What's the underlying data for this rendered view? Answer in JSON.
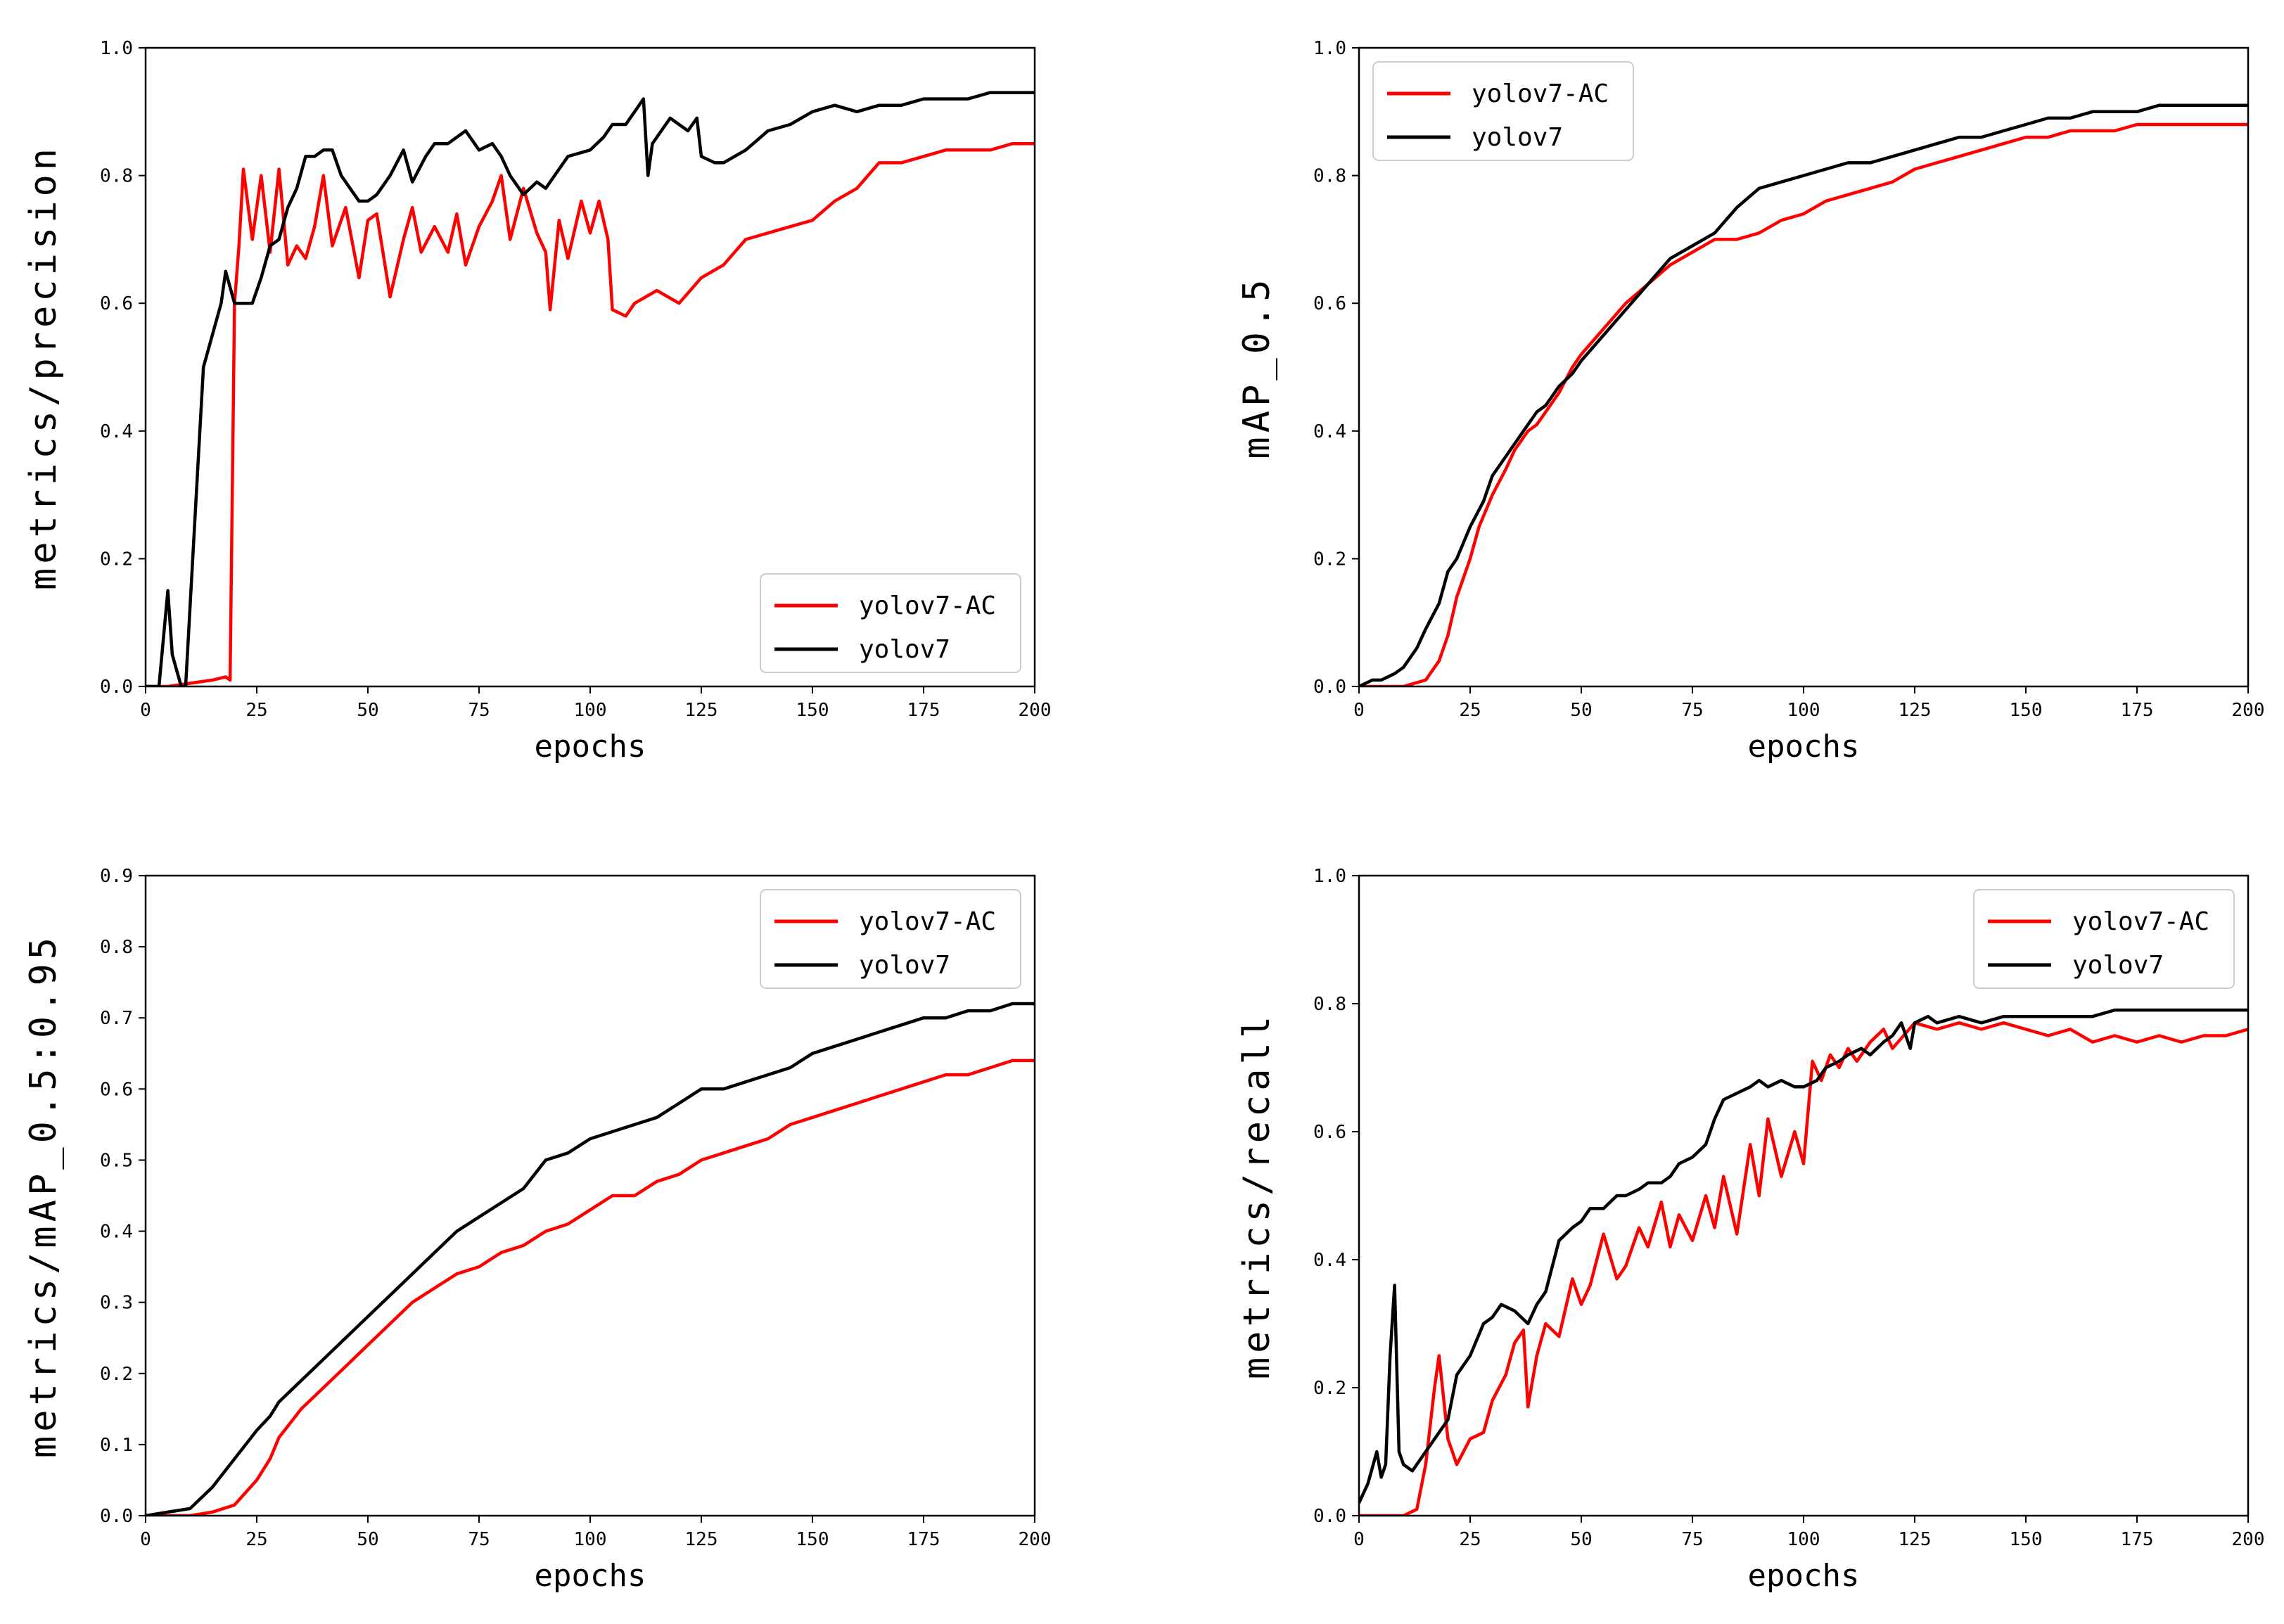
{
  "colors": {
    "yolov7_ac": "#ff0000",
    "yolov7": "#000000",
    "axis": "#000000"
  },
  "chart_data": [
    {
      "type": "line",
      "panel": "top-left",
      "xlabel": "epochs",
      "ylabel": "metrics/precision",
      "xlim": [
        0,
        200
      ],
      "ylim": [
        0,
        1.0
      ],
      "xticks": [
        "0",
        "25",
        "50",
        "75",
        "100",
        "125",
        "150",
        "175",
        "200"
      ],
      "yticks": [
        "0.0",
        "0.2",
        "0.4",
        "0.6",
        "0.8",
        "1.0"
      ],
      "legend": "lower-right",
      "series": [
        {
          "name": "yolov7-AC",
          "color": "#ff0000",
          "x": [
            0,
            5,
            10,
            15,
            18,
            19,
            20,
            21,
            22,
            24,
            26,
            28,
            30,
            32,
            34,
            36,
            38,
            40,
            42,
            45,
            48,
            50,
            52,
            55,
            58,
            60,
            62,
            65,
            68,
            70,
            72,
            75,
            78,
            80,
            82,
            85,
            88,
            90,
            91,
            93,
            95,
            98,
            100,
            102,
            104,
            105,
            108,
            110,
            115,
            120,
            125,
            130,
            135,
            140,
            145,
            150,
            155,
            160,
            165,
            170,
            175,
            180,
            185,
            190,
            195,
            198,
            200
          ],
          "y": [
            0,
            0,
            0.005,
            0.01,
            0.015,
            0.01,
            0.6,
            0.69,
            0.81,
            0.7,
            0.8,
            0.68,
            0.81,
            0.66,
            0.69,
            0.67,
            0.72,
            0.8,
            0.69,
            0.75,
            0.64,
            0.73,
            0.74,
            0.61,
            0.7,
            0.75,
            0.68,
            0.72,
            0.68,
            0.74,
            0.66,
            0.72,
            0.76,
            0.8,
            0.7,
            0.78,
            0.71,
            0.68,
            0.59,
            0.73,
            0.67,
            0.76,
            0.71,
            0.76,
            0.7,
            0.59,
            0.58,
            0.6,
            0.62,
            0.6,
            0.64,
            0.66,
            0.7,
            0.71,
            0.72,
            0.73,
            0.76,
            0.78,
            0.82,
            0.82,
            0.83,
            0.84,
            0.84,
            0.84,
            0.85,
            0.85,
            0.85
          ]
        },
        {
          "name": "yolov7",
          "color": "#000000",
          "x": [
            0,
            3,
            5,
            6,
            8,
            9,
            11,
            13,
            15,
            17,
            18,
            20,
            22,
            24,
            26,
            28,
            30,
            32,
            34,
            36,
            38,
            40,
            42,
            44,
            46,
            48,
            50,
            52,
            55,
            58,
            60,
            63,
            65,
            68,
            70,
            72,
            75,
            78,
            80,
            82,
            85,
            88,
            90,
            92,
            95,
            100,
            103,
            105,
            108,
            110,
            112,
            113,
            114,
            116,
            118,
            120,
            122,
            124,
            125,
            128,
            130,
            135,
            140,
            145,
            150,
            155,
            160,
            165,
            170,
            175,
            180,
            185,
            190,
            195,
            200
          ],
          "y": [
            0,
            0,
            0.15,
            0.05,
            0,
            0,
            0.25,
            0.5,
            0.55,
            0.6,
            0.65,
            0.6,
            0.6,
            0.6,
            0.64,
            0.69,
            0.7,
            0.75,
            0.78,
            0.83,
            0.83,
            0.84,
            0.84,
            0.8,
            0.78,
            0.76,
            0.76,
            0.77,
            0.8,
            0.84,
            0.79,
            0.83,
            0.85,
            0.85,
            0.86,
            0.87,
            0.84,
            0.85,
            0.83,
            0.8,
            0.77,
            0.79,
            0.78,
            0.8,
            0.83,
            0.84,
            0.86,
            0.88,
            0.88,
            0.9,
            0.92,
            0.8,
            0.85,
            0.87,
            0.89,
            0.88,
            0.87,
            0.89,
            0.83,
            0.82,
            0.82,
            0.84,
            0.87,
            0.88,
            0.9,
            0.91,
            0.9,
            0.91,
            0.91,
            0.92,
            0.92,
            0.92,
            0.93,
            0.93,
            0.93
          ]
        }
      ]
    },
    {
      "type": "line",
      "panel": "top-right",
      "xlabel": "epochs",
      "ylabel": "mAP_0.5",
      "xlim": [
        0,
        200
      ],
      "ylim": [
        0,
        1.0
      ],
      "xticks": [
        "0",
        "25",
        "50",
        "75",
        "100",
        "125",
        "150",
        "175",
        "200"
      ],
      "yticks": [
        "0.0",
        "0.2",
        "0.4",
        "0.6",
        "0.8",
        "1.0"
      ],
      "legend": "upper-left",
      "series": [
        {
          "name": "yolov7-AC",
          "color": "#ff0000",
          "x": [
            0,
            5,
            10,
            15,
            18,
            20,
            22,
            25,
            27,
            30,
            33,
            35,
            38,
            40,
            42,
            45,
            48,
            50,
            55,
            60,
            65,
            70,
            75,
            80,
            85,
            90,
            95,
            100,
            105,
            110,
            115,
            120,
            125,
            130,
            135,
            140,
            145,
            150,
            155,
            160,
            165,
            170,
            175,
            180,
            185,
            190,
            195,
            200
          ],
          "y": [
            0,
            0,
            0,
            0.01,
            0.04,
            0.08,
            0.14,
            0.2,
            0.25,
            0.3,
            0.34,
            0.37,
            0.4,
            0.41,
            0.43,
            0.46,
            0.5,
            0.52,
            0.56,
            0.6,
            0.63,
            0.66,
            0.68,
            0.7,
            0.7,
            0.71,
            0.73,
            0.74,
            0.76,
            0.77,
            0.78,
            0.79,
            0.81,
            0.82,
            0.83,
            0.84,
            0.85,
            0.86,
            0.86,
            0.87,
            0.87,
            0.87,
            0.88,
            0.88,
            0.88,
            0.88,
            0.88,
            0.88
          ]
        },
        {
          "name": "yolov7",
          "color": "#000000",
          "x": [
            0,
            3,
            5,
            8,
            10,
            13,
            15,
            18,
            20,
            22,
            25,
            28,
            30,
            33,
            35,
            38,
            40,
            42,
            45,
            48,
            50,
            55,
            60,
            65,
            70,
            75,
            80,
            85,
            90,
            95,
            100,
            105,
            110,
            115,
            120,
            125,
            130,
            135,
            140,
            145,
            150,
            155,
            160,
            165,
            170,
            175,
            180,
            185,
            190,
            195,
            200
          ],
          "y": [
            0,
            0.01,
            0.01,
            0.02,
            0.03,
            0.06,
            0.09,
            0.13,
            0.18,
            0.2,
            0.25,
            0.29,
            0.33,
            0.36,
            0.38,
            0.41,
            0.43,
            0.44,
            0.47,
            0.49,
            0.51,
            0.55,
            0.59,
            0.63,
            0.67,
            0.69,
            0.71,
            0.75,
            0.78,
            0.79,
            0.8,
            0.81,
            0.82,
            0.82,
            0.83,
            0.84,
            0.85,
            0.86,
            0.86,
            0.87,
            0.88,
            0.89,
            0.89,
            0.9,
            0.9,
            0.9,
            0.91,
            0.91,
            0.91,
            0.91,
            0.91
          ]
        }
      ]
    },
    {
      "type": "line",
      "panel": "bottom-left",
      "xlabel": "epochs",
      "ylabel": "metrics/mAP_0.5:0.95",
      "xlim": [
        0,
        200
      ],
      "ylim": [
        0,
        0.9
      ],
      "xticks": [
        "0",
        "25",
        "50",
        "75",
        "100",
        "125",
        "150",
        "175",
        "200"
      ],
      "yticks": [
        "0.0",
        "0.1",
        "0.2",
        "0.3",
        "0.4",
        "0.5",
        "0.6",
        "0.7",
        "0.8",
        "0.9"
      ],
      "legend": "upper-right",
      "series": [
        {
          "name": "yolov7-AC",
          "color": "#ff0000",
          "x": [
            0,
            5,
            10,
            15,
            20,
            25,
            28,
            30,
            35,
            40,
            45,
            50,
            55,
            60,
            65,
            70,
            75,
            80,
            85,
            90,
            95,
            100,
            105,
            110,
            115,
            120,
            125,
            130,
            135,
            140,
            145,
            150,
            155,
            160,
            165,
            170,
            175,
            180,
            185,
            190,
            195,
            200
          ],
          "y": [
            0,
            0,
            0,
            0.005,
            0.015,
            0.05,
            0.08,
            0.11,
            0.15,
            0.18,
            0.21,
            0.24,
            0.27,
            0.3,
            0.32,
            0.34,
            0.35,
            0.37,
            0.38,
            0.4,
            0.41,
            0.43,
            0.45,
            0.45,
            0.47,
            0.48,
            0.5,
            0.51,
            0.52,
            0.53,
            0.55,
            0.56,
            0.57,
            0.58,
            0.59,
            0.6,
            0.61,
            0.62,
            0.62,
            0.63,
            0.64,
            0.64
          ]
        },
        {
          "name": "yolov7",
          "color": "#000000",
          "x": [
            0,
            5,
            10,
            15,
            20,
            25,
            28,
            30,
            35,
            40,
            45,
            50,
            55,
            60,
            65,
            70,
            75,
            80,
            85,
            90,
            95,
            100,
            105,
            110,
            115,
            120,
            125,
            130,
            135,
            140,
            145,
            150,
            155,
            160,
            165,
            170,
            175,
            180,
            185,
            190,
            195,
            200
          ],
          "y": [
            0,
            0.005,
            0.01,
            0.04,
            0.08,
            0.12,
            0.14,
            0.16,
            0.19,
            0.22,
            0.25,
            0.28,
            0.31,
            0.34,
            0.37,
            0.4,
            0.42,
            0.44,
            0.46,
            0.5,
            0.51,
            0.53,
            0.54,
            0.55,
            0.56,
            0.58,
            0.6,
            0.6,
            0.61,
            0.62,
            0.63,
            0.65,
            0.66,
            0.67,
            0.68,
            0.69,
            0.7,
            0.7,
            0.71,
            0.71,
            0.72,
            0.72
          ]
        }
      ]
    },
    {
      "type": "line",
      "panel": "bottom-right",
      "xlabel": "epochs",
      "ylabel": "metrics/recall",
      "xlim": [
        0,
        200
      ],
      "ylim": [
        0,
        1.0
      ],
      "xticks": [
        "0",
        "25",
        "50",
        "75",
        "100",
        "125",
        "150",
        "175",
        "200"
      ],
      "yticks": [
        "0.0",
        "0.2",
        "0.4",
        "0.6",
        "0.8",
        "1.0"
      ],
      "legend": "upper-right",
      "series": [
        {
          "name": "yolov7-AC",
          "color": "#ff0000",
          "x": [
            0,
            5,
            10,
            13,
            15,
            17,
            18,
            20,
            22,
            25,
            28,
            30,
            33,
            35,
            37,
            38,
            40,
            42,
            45,
            48,
            50,
            52,
            55,
            58,
            60,
            63,
            65,
            68,
            70,
            72,
            75,
            78,
            80,
            82,
            85,
            88,
            90,
            92,
            95,
            98,
            100,
            102,
            104,
            106,
            108,
            110,
            112,
            115,
            118,
            120,
            125,
            130,
            135,
            140,
            145,
            150,
            155,
            160,
            165,
            170,
            175,
            180,
            185,
            190,
            195,
            200
          ],
          "y": [
            0,
            0,
            0,
            0.01,
            0.08,
            0.2,
            0.25,
            0.12,
            0.08,
            0.12,
            0.13,
            0.18,
            0.22,
            0.27,
            0.29,
            0.17,
            0.25,
            0.3,
            0.28,
            0.37,
            0.33,
            0.36,
            0.44,
            0.37,
            0.39,
            0.45,
            0.42,
            0.49,
            0.42,
            0.47,
            0.43,
            0.5,
            0.45,
            0.53,
            0.44,
            0.58,
            0.5,
            0.62,
            0.53,
            0.6,
            0.55,
            0.71,
            0.68,
            0.72,
            0.7,
            0.73,
            0.71,
            0.74,
            0.76,
            0.73,
            0.77,
            0.76,
            0.77,
            0.76,
            0.77,
            0.76,
            0.75,
            0.76,
            0.74,
            0.75,
            0.74,
            0.75,
            0.74,
            0.75,
            0.75,
            0.76
          ]
        },
        {
          "name": "yolov7",
          "color": "#000000",
          "x": [
            0,
            2,
            4,
            5,
            6,
            7,
            8,
            9,
            10,
            12,
            15,
            18,
            20,
            22,
            25,
            28,
            30,
            32,
            35,
            38,
            40,
            42,
            45,
            48,
            50,
            52,
            55,
            58,
            60,
            63,
            65,
            68,
            70,
            72,
            75,
            78,
            80,
            82,
            85,
            88,
            90,
            92,
            95,
            98,
            100,
            103,
            105,
            108,
            110,
            113,
            115,
            118,
            120,
            122,
            124,
            125,
            128,
            130,
            135,
            140,
            145,
            150,
            155,
            160,
            165,
            170,
            175,
            180,
            185,
            190,
            195,
            200
          ],
          "y": [
            0.02,
            0.05,
            0.1,
            0.06,
            0.08,
            0.25,
            0.36,
            0.1,
            0.08,
            0.07,
            0.1,
            0.13,
            0.15,
            0.22,
            0.25,
            0.3,
            0.31,
            0.33,
            0.32,
            0.3,
            0.33,
            0.35,
            0.43,
            0.45,
            0.46,
            0.48,
            0.48,
            0.5,
            0.5,
            0.51,
            0.52,
            0.52,
            0.53,
            0.55,
            0.56,
            0.58,
            0.62,
            0.65,
            0.66,
            0.67,
            0.68,
            0.67,
            0.68,
            0.67,
            0.67,
            0.68,
            0.7,
            0.71,
            0.72,
            0.73,
            0.72,
            0.74,
            0.75,
            0.77,
            0.73,
            0.77,
            0.78,
            0.77,
            0.78,
            0.77,
            0.78,
            0.78,
            0.78,
            0.78,
            0.78,
            0.79,
            0.79,
            0.79,
            0.79,
            0.79,
            0.79,
            0.79
          ]
        }
      ]
    }
  ]
}
